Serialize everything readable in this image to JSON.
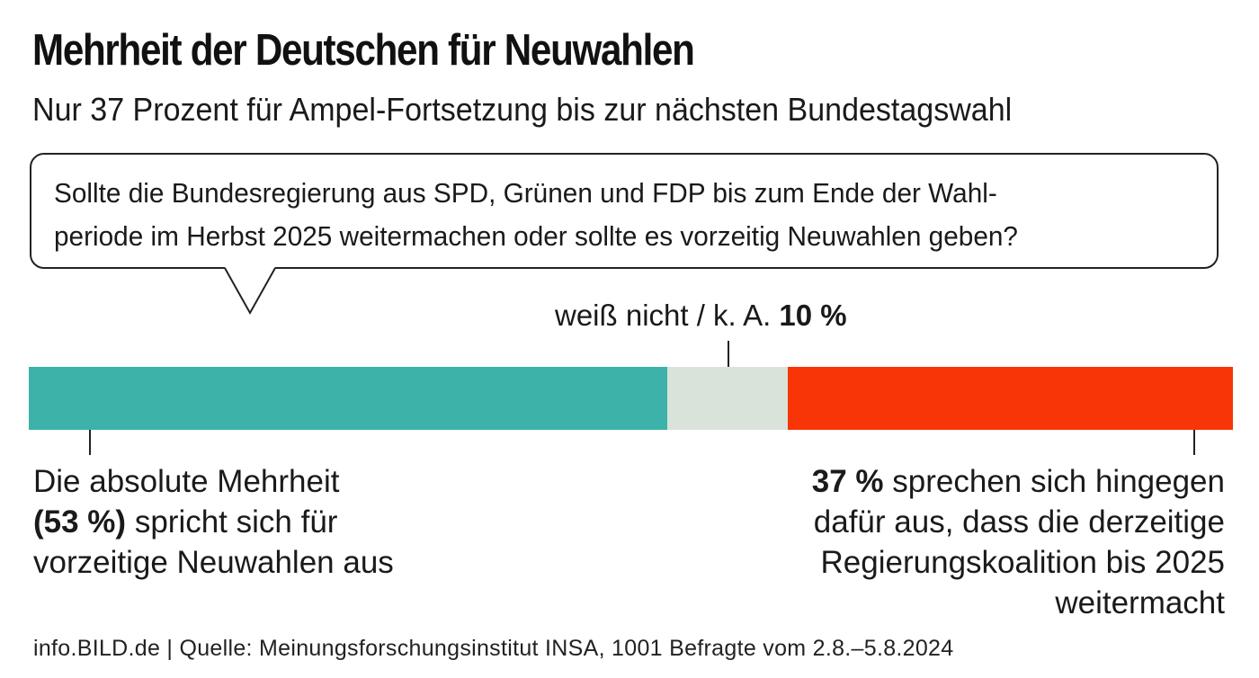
{
  "title": "Mehrheit der Deutschen für Neuwahlen",
  "subtitle": "Nur 37 Prozent für Ampel-Fortsetzung bis zur nächsten Bundestagswahl",
  "question": {
    "line1": "Sollte die Bundesregierung aus SPD, Grünen und FDP bis zum Ende der Wahl-",
    "line2": "periode im Herbst 2025 weitermachen oder sollte es vorzeitig Neuwahlen geben?"
  },
  "labels": {
    "dontknow_text": "weiß nicht / k. A. ",
    "dontknow_value": "10 %",
    "left_value": "(53 %)",
    "left_line1": "Die absolute Mehrheit",
    "left_line2_rest": " spricht sich für",
    "left_line3": "vorzeitige Neuwahlen aus",
    "right_value": "37 %",
    "right_line1_rest": " sprechen sich hingegen",
    "right_line2": "dafür aus, dass die derzeitige",
    "right_line3": "Regierungskoalition bis 2025",
    "right_line4": "weitermacht"
  },
  "chart_data": {
    "type": "bar",
    "orientation": "horizontal-stacked",
    "categories": [
      "Neuwahlen",
      "weiß nicht / k. A.",
      "Weitermachen bis 2025"
    ],
    "values": [
      53,
      10,
      37
    ],
    "unit": "%",
    "colors": [
      "#3cb2a9",
      "#d9e3da",
      "#f73506"
    ],
    "title": "Mehrheit der Deutschen für Neuwahlen"
  },
  "footer": "info.BILD.de | Quelle: Meinungsforschungsinstitut INSA, 1001 Befragte vom 2.8.–5.8.2024"
}
